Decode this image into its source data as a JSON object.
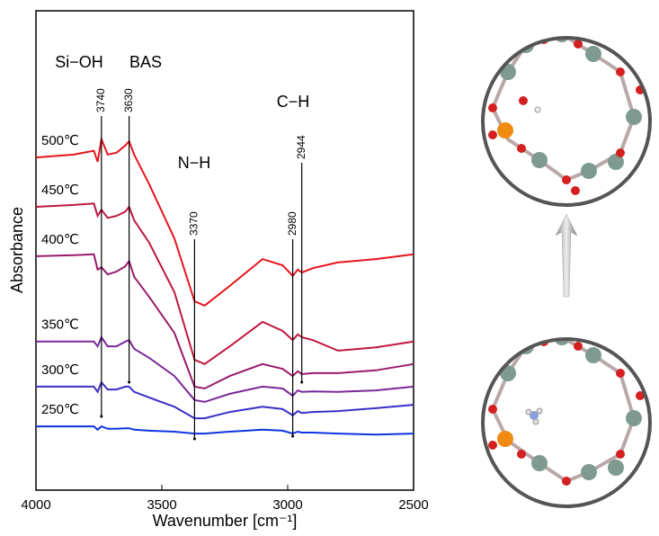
{
  "chart_data": {
    "type": "line",
    "x_label": "Wavenumber [cm⁻¹]",
    "y_label": "Absorbance",
    "xlim": [
      4000,
      2500
    ],
    "xticks": [
      4000,
      3500,
      3000,
      2500
    ],
    "ylim": [
      0,
      100
    ],
    "x": [
      4000,
      3850,
      3770,
      3755,
      3740,
      3715,
      3680,
      3645,
      3630,
      3610,
      3550,
      3450,
      3370,
      3330,
      3230,
      3100,
      3020,
      2980,
      2960,
      2944,
      2900,
      2800,
      2650,
      2500
    ],
    "series": [
      {
        "name": "500℃",
        "color": "#e8141e",
        "values": [
          69.4,
          70.0,
          70.8,
          68.5,
          73.2,
          70.0,
          70.4,
          71.9,
          72.8,
          70.0,
          63.8,
          52.5,
          39.4,
          38.5,
          42.6,
          48.2,
          46.9,
          44.7,
          46.0,
          45.4,
          46.3,
          47.5,
          48.2,
          49.2
        ]
      },
      {
        "name": "450℃",
        "color": "#c01840",
        "values": [
          59.1,
          59.5,
          59.8,
          57.2,
          58.5,
          56.8,
          57.2,
          58.1,
          59.1,
          56.3,
          51.6,
          41.3,
          27.2,
          26.3,
          30.0,
          35.1,
          33.2,
          31.3,
          32.5,
          31.9,
          31.3,
          29.1,
          29.8,
          31.0
        ]
      },
      {
        "name": "400℃",
        "color": "#9a1a6a",
        "values": [
          48.8,
          49.0,
          49.2,
          46.0,
          46.5,
          45.0,
          45.6,
          46.7,
          47.8,
          44.5,
          40.3,
          32.8,
          21.6,
          21.2,
          23.8,
          26.3,
          25.3,
          23.8,
          24.8,
          24.2,
          24.4,
          24.4,
          25.0,
          26.3
        ]
      },
      {
        "name": "350℃",
        "color": "#7a2898",
        "values": [
          31.0,
          31.0,
          31.0,
          30.0,
          31.9,
          30.0,
          30.0,
          31.0,
          31.3,
          29.5,
          27.6,
          23.8,
          18.8,
          18.4,
          20.1,
          21.6,
          21.2,
          19.7,
          20.8,
          20.5,
          20.6,
          20.5,
          20.8,
          21.6
        ]
      },
      {
        "name": "300℃",
        "color": "#3a2ec8",
        "values": [
          21.6,
          21.6,
          21.6,
          20.5,
          22.5,
          21.0,
          21.0,
          21.6,
          21.6,
          20.5,
          19.3,
          17.4,
          15.0,
          15.0,
          16.3,
          17.4,
          16.9,
          15.6,
          16.5,
          16.1,
          16.3,
          16.5,
          17.1,
          17.8
        ]
      },
      {
        "name": "250℃",
        "color": "#1034e0",
        "values": [
          13.3,
          13.3,
          13.3,
          12.6,
          13.3,
          12.8,
          12.8,
          12.9,
          12.9,
          12.6,
          12.4,
          12.2,
          11.8,
          11.8,
          12.2,
          12.6,
          12.4,
          11.8,
          12.2,
          12.0,
          12.0,
          11.8,
          11.6,
          11.8
        ]
      }
    ],
    "groups": [
      "Si−OH",
      "BAS",
      "N−H",
      "C−H"
    ],
    "peaks": [
      3740,
      3630,
      3370,
      2980,
      2944
    ]
  }
}
